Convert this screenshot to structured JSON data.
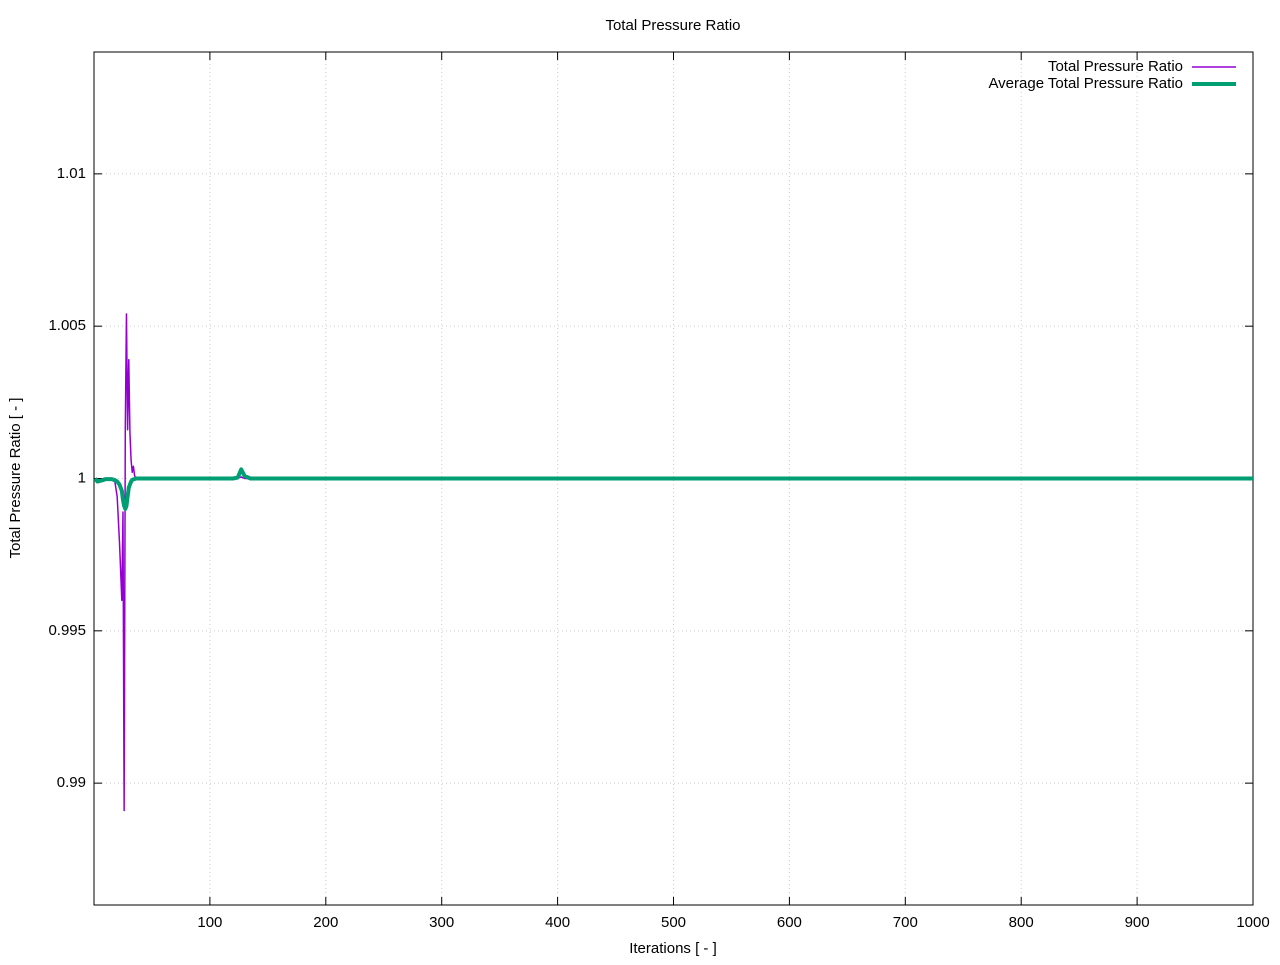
{
  "chart_data": {
    "type": "line",
    "title": "Total Pressure Ratio",
    "x_label": "Iterations [ - ]",
    "y_label": "Total Pressure Ratio [ - ]",
    "x": [
      1,
      3,
      5,
      8,
      10,
      12,
      15,
      18,
      20,
      22,
      24,
      25,
      26,
      27,
      28,
      29,
      30,
      31,
      32,
      33,
      34,
      35,
      36,
      38,
      40,
      50,
      100,
      120,
      124,
      127,
      130,
      135,
      140,
      200,
      400,
      600,
      800,
      1000
    ],
    "series": [
      {
        "name": "Total Pressure Ratio",
        "color": "#9400d3",
        "width": 1.5,
        "values": [
          1,
          0.9999,
          0.99995,
          1,
          1,
          1,
          0.99995,
          0.9999,
          0.9994,
          0.9979,
          0.996,
          0.9989,
          0.9891,
          1.0016,
          1.0054,
          1.0016,
          1.0039,
          1.0015,
          1.0006,
          1.0002,
          1.0004,
          1.0001,
          1,
          1,
          1,
          1,
          1,
          1,
          1.00002,
          1.00005,
          1,
          1,
          1,
          1,
          1,
          1,
          1,
          1
        ]
      },
      {
        "name": "Average Total Pressure Ratio",
        "color": "#009e73",
        "width": 4,
        "values": [
          1,
          0.9999,
          0.99992,
          0.99995,
          0.99998,
          0.99998,
          0.99998,
          0.99995,
          0.9999,
          0.9998,
          0.9996,
          0.9993,
          0.9991,
          0.999,
          0.9991,
          0.9994,
          0.9997,
          0.9998,
          0.9999,
          0.99995,
          0.99997,
          0.99998,
          1,
          1,
          1,
          1,
          1,
          1,
          1.00003,
          1.0003,
          1.00008,
          1,
          1,
          1,
          1,
          1,
          1,
          1
        ]
      }
    ],
    "xlim": [
      0,
      1000
    ],
    "xticks": [
      100,
      200,
      300,
      400,
      500,
      600,
      700,
      800,
      900,
      1000
    ],
    "ylim": [
      0.986,
      1.014
    ],
    "yticks": [
      0.99,
      0.995,
      1,
      1.005,
      1.01
    ],
    "grid": true,
    "legend": "top-right"
  }
}
